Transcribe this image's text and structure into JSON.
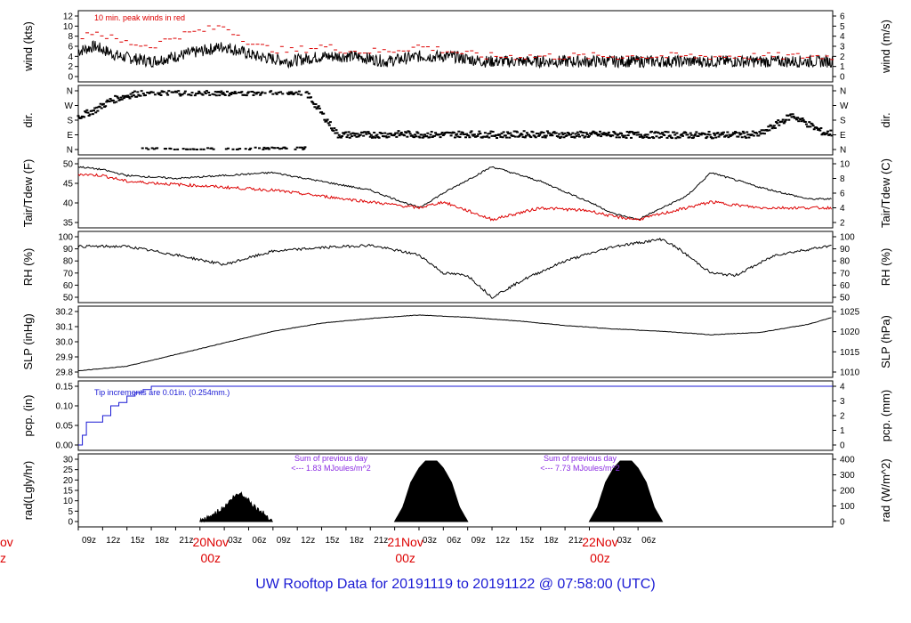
{
  "title": "UW Rooftop Data for 20191119  to  20191122 @ 07:58:00  (UTC)",
  "colors": {
    "series": "#000000",
    "peak": "#dd0000",
    "precip": "#1a1ad4",
    "note": "#8a2be2",
    "day": "#dd0000",
    "title": "#1a1ad4"
  },
  "x_axis": {
    "start_hour_label": "09z",
    "hour_ticks": [
      "09z",
      "12z",
      "15z",
      "18z",
      "21z",
      "00z",
      "03z",
      "06z",
      "09z",
      "12z",
      "15z",
      "18z",
      "21z",
      "00z",
      "03z",
      "06z",
      "09z",
      "12z",
      "15z",
      "18z",
      "21z",
      "00z",
      "03z",
      "06z"
    ],
    "day_labels": [
      {
        "date": "20Nov",
        "hour": "00z"
      },
      {
        "date": "21Nov",
        "hour": "00z"
      },
      {
        "date": "22Nov",
        "hour": "00z"
      }
    ],
    "cutoff_left": {
      "date": "ov",
      "hour": "z"
    }
  },
  "chart_data": [
    {
      "type": "line",
      "id": "wind",
      "ylabel_left": "wind (kts)",
      "ylabel_right": "wind (m/s)",
      "ylim": [
        0,
        12
      ],
      "ticks_left": [
        "0",
        "2",
        "4",
        "6",
        "8",
        "10",
        "12"
      ],
      "ticks_right": [
        "0",
        "1",
        "2",
        "3",
        "4",
        "5",
        "6"
      ],
      "annotation": "10 min. peak winds in red",
      "series": [
        {
          "name": "wind",
          "x_hours": [
            0,
            2,
            5,
            9,
            12,
            15,
            18,
            22,
            26,
            30,
            34,
            38,
            42,
            46,
            50,
            55,
            60,
            65,
            70,
            75,
            80,
            86,
            92
          ],
          "values": [
            5,
            6,
            4,
            3,
            4,
            5,
            6,
            4,
            3,
            4,
            4,
            3,
            4,
            4,
            3,
            3,
            3,
            3,
            3,
            3,
            3,
            3,
            3
          ]
        },
        {
          "name": "peak",
          "x_hours": [
            0,
            2,
            5,
            9,
            12,
            15,
            18,
            22,
            26,
            30,
            34,
            38,
            42,
            46,
            50,
            55,
            60,
            65,
            70,
            75,
            80,
            86,
            92
          ],
          "values": [
            8,
            9,
            7,
            6,
            8,
            9,
            10,
            6,
            5,
            6,
            5,
            5,
            6,
            5,
            4,
            4,
            4,
            4,
            4,
            4,
            4,
            4,
            4
          ]
        }
      ]
    },
    {
      "type": "scatter",
      "id": "dir",
      "ylabel_left": "dir.",
      "ylabel_right": "dir.",
      "ticks_left": [
        "N",
        "E",
        "S",
        "W",
        "N"
      ],
      "ticks_right": [
        "N",
        "E",
        "S",
        "W",
        "N"
      ],
      "series": [
        {
          "name": "dir",
          "x_hours": [
            0,
            2,
            4,
            6,
            8,
            12,
            16,
            20,
            24,
            28,
            32,
            36,
            40,
            44,
            48,
            52,
            56,
            60,
            64,
            68,
            72,
            76,
            80,
            84,
            88,
            92
          ],
          "values": [
            200,
            240,
            300,
            330,
            350,
            350,
            350,
            350,
            355,
            355,
            90,
            90,
            95,
            90,
            95,
            90,
            95,
            90,
            92,
            90,
            90,
            88,
            90,
            92,
            210,
            100
          ]
        }
      ]
    },
    {
      "type": "line",
      "id": "temp",
      "ylabel_left": "Tair/Tdew (F)",
      "ylabel_right": "Tair/Tdew (C)",
      "ylim": [
        33,
        53
      ],
      "ticks_left": [
        "35",
        "40",
        "45",
        "50"
      ],
      "ticks_right": [
        "2",
        "4",
        "6",
        "8",
        "10"
      ],
      "series": [
        {
          "name": "Tair",
          "x_hours": [
            0,
            3,
            6,
            12,
            18,
            24,
            30,
            36,
            42,
            45,
            51,
            57,
            63,
            66,
            69,
            75,
            78,
            84,
            90,
            93
          ],
          "values": [
            52,
            51,
            49,
            48,
            49,
            50,
            47,
            44,
            38,
            43,
            52,
            47,
            40,
            36,
            34,
            42,
            50,
            45,
            41,
            41
          ]
        },
        {
          "name": "Tdew",
          "x_hours": [
            0,
            3,
            6,
            12,
            18,
            24,
            30,
            36,
            42,
            45,
            51,
            57,
            63,
            66,
            69,
            75,
            78,
            84,
            90,
            93
          ],
          "values": [
            49.5,
            49,
            47,
            46,
            45,
            44,
            42,
            40,
            38,
            40,
            34,
            38,
            37,
            35,
            34,
            38,
            40,
            38,
            38,
            38
          ]
        }
      ]
    },
    {
      "type": "line",
      "id": "rh",
      "ylabel_left": "RH (%)",
      "ylabel_right": "RH (%)",
      "ylim": [
        50,
        100
      ],
      "ticks_left": [
        "50",
        "60",
        "70",
        "80",
        "90",
        "100"
      ],
      "ticks_right": [
        "50",
        "60",
        "70",
        "80",
        "90",
        "100"
      ],
      "series": [
        {
          "name": "RH",
          "x_hours": [
            0,
            6,
            12,
            18,
            24,
            30,
            36,
            42,
            45,
            48,
            51,
            55,
            60,
            66,
            72,
            74,
            78,
            81,
            86,
            93
          ],
          "values": [
            92,
            92,
            85,
            77,
            88,
            91,
            93,
            85,
            70,
            68,
            50,
            65,
            80,
            92,
            98,
            90,
            70,
            68,
            85,
            93
          ]
        }
      ]
    },
    {
      "type": "line",
      "id": "slp",
      "ylabel_left": "SLP (inHg)",
      "ylabel_right": "SLP (hPa)",
      "ylim": [
        29.73,
        30.25
      ],
      "ticks_left": [
        "29.8",
        "29.9",
        "30.0",
        "30.1",
        "30.2"
      ],
      "ticks_right": [
        "1010",
        "1015",
        "1020",
        "1025"
      ],
      "series": [
        {
          "name": "SLP",
          "x_hours": [
            0,
            6,
            12,
            18,
            24,
            30,
            36,
            42,
            48,
            54,
            60,
            66,
            72,
            78,
            84,
            90,
            93
          ],
          "values": [
            29.74,
            29.78,
            29.88,
            29.98,
            30.08,
            30.15,
            30.19,
            30.22,
            30.2,
            30.17,
            30.13,
            30.1,
            30.08,
            30.05,
            30.07,
            30.14,
            30.2
          ]
        }
      ]
    },
    {
      "type": "line",
      "id": "pcp",
      "ylabel_left": "pcp. (in)",
      "ylabel_right": "pcp. (mm)",
      "ylim": [
        0,
        0.18
      ],
      "ticks_left": [
        "0.00",
        "0.05",
        "0.10",
        "0.15"
      ],
      "ticks_right": [
        "0",
        "1",
        "2",
        "3",
        "4"
      ],
      "annotation": "Tip increments are 0.01in. (0.254mm.)",
      "series": [
        {
          "name": "pcp",
          "x_hours": [
            0,
            0.5,
            1,
            3,
            4,
            5,
            6,
            7,
            8,
            9,
            93
          ],
          "values": [
            0,
            0.03,
            0.07,
            0.09,
            0.12,
            0.13,
            0.15,
            0.16,
            0.17,
            0.18,
            0.18
          ]
        }
      ]
    },
    {
      "type": "area",
      "id": "rad",
      "ylabel_left": "rad(Lgly/hr)",
      "ylabel_right": "rad (W/m^2)",
      "ylim": [
        0,
        35
      ],
      "ticks_left": [
        "0",
        "5",
        "10",
        "15",
        "20",
        "25",
        "30"
      ],
      "ticks_right": [
        "0",
        "100",
        "200",
        "300",
        "400"
      ],
      "annotations": [
        {
          "text_line1": "Sum of previous day",
          "text_line2": "<--- 1.83 MJoules/m^2"
        },
        {
          "text_line1": "Sum of previous day",
          "text_line2": "<--- 7.73 MJoules/m^2"
        }
      ],
      "series": [
        {
          "name": "rad",
          "x_hours": [
            15,
            16,
            17,
            18,
            19,
            20,
            21,
            22,
            23,
            24,
            39,
            40,
            41,
            42,
            43,
            44,
            45,
            46,
            47,
            48,
            63,
            64,
            65,
            66,
            67,
            68,
            69,
            70,
            71,
            72
          ],
          "values": [
            0,
            2,
            5,
            8,
            13,
            16,
            12,
            7,
            4,
            0,
            0,
            8,
            22,
            30,
            35,
            35,
            30,
            22,
            8,
            0,
            0,
            8,
            22,
            30,
            35,
            35,
            30,
            22,
            8,
            0
          ]
        }
      ]
    }
  ]
}
